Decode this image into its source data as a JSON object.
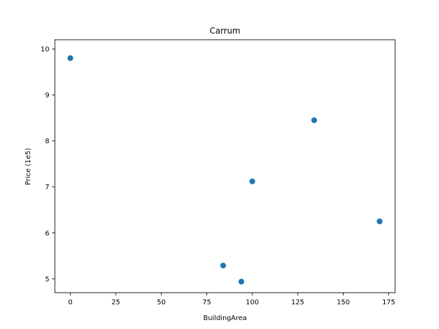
{
  "chart_data": {
    "type": "scatter",
    "title": "Carrum",
    "xlabel": "BuildingArea",
    "ylabel": "Price (1e5)",
    "xlim": [
      -8.5,
      178.5
    ],
    "ylim": [
      4.7,
      10.2
    ],
    "xticks": [
      0,
      25,
      50,
      75,
      100,
      125,
      150,
      175
    ],
    "yticks": [
      5,
      6,
      7,
      8,
      9,
      10
    ],
    "grid": false,
    "color": "#1f77b4",
    "points": [
      {
        "x": 0,
        "y": 9.8
      },
      {
        "x": 134,
        "y": 8.45
      },
      {
        "x": 100,
        "y": 7.12
      },
      {
        "x": 170,
        "y": 6.25
      },
      {
        "x": 84,
        "y": 5.29
      },
      {
        "x": 94,
        "y": 4.94
      }
    ]
  }
}
